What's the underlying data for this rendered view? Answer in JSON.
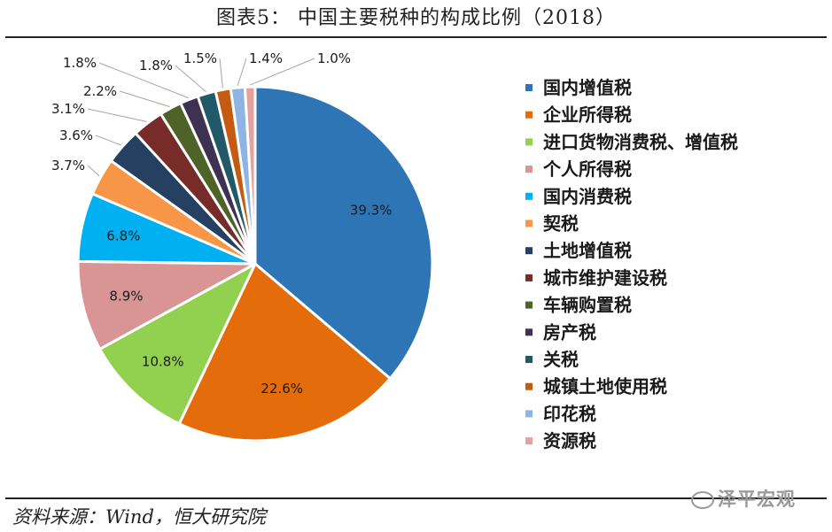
{
  "title": "图表5：  中国主要税种的构成比例（2018）",
  "source": "资料来源：Wind，恒大研究院",
  "watermark": "泽平宏观",
  "chart_data": {
    "type": "pie",
    "title": "图表5：  中国主要税种的构成比例（2018）",
    "legend_position": "right",
    "start_angle": "12 o'clock, clockwise",
    "slices": [
      {
        "name": "国内增值税",
        "value": 39.3,
        "label": "39.3%",
        "color": "#2E75B6"
      },
      {
        "name": "企业所得税",
        "value": 22.6,
        "label": "22.6%",
        "color": "#E46C0A"
      },
      {
        "name": "进口货物消费税、增值税",
        "value": 10.8,
        "label": "10.8%",
        "color": "#92D050"
      },
      {
        "name": "个人所得税",
        "value": 8.9,
        "label": "8.9%",
        "color": "#D99594"
      },
      {
        "name": "国内消费税",
        "value": 6.8,
        "label": "6.8%",
        "color": "#00B0F0"
      },
      {
        "name": "契税",
        "value": 3.7,
        "label": "3.7%",
        "color": "#F79646"
      },
      {
        "name": "土地增值税",
        "value": 3.6,
        "label": "3.6%",
        "color": "#254061"
      },
      {
        "name": "城市维护建设税",
        "value": 3.1,
        "label": "3.1%",
        "color": "#772C2A"
      },
      {
        "name": "车辆购置税",
        "value": 2.2,
        "label": "2.2%",
        "color": "#4F6228"
      },
      {
        "name": "房产税",
        "value": 1.8,
        "label": "1.8%",
        "color": "#3F3151"
      },
      {
        "name": "关税",
        "value": 1.8,
        "label": "1.8%",
        "color": "#215968"
      },
      {
        "name": "城镇土地使用税",
        "value": 1.5,
        "label": "1.5%",
        "color": "#C55A11"
      },
      {
        "name": "印花税",
        "value": 1.4,
        "label": "1.4%",
        "color": "#8EB4E3"
      },
      {
        "name": "资源税",
        "value": 1.0,
        "label": "1.0%",
        "color": "#E6A09E"
      }
    ]
  }
}
